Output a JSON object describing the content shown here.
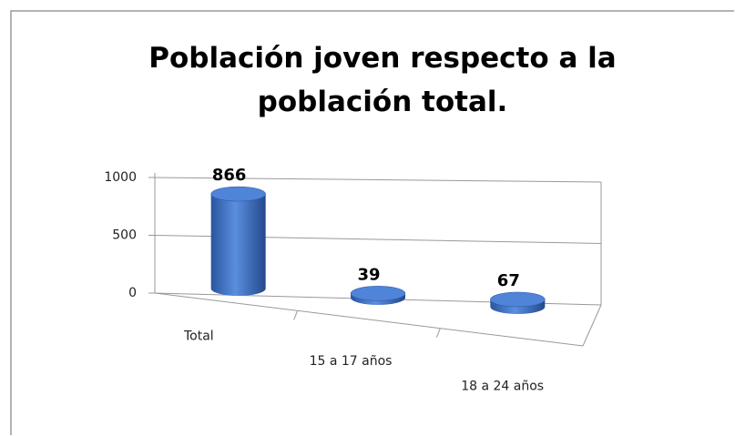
{
  "chart_data": {
    "type": "bar",
    "title": "Población joven respecto a la población total.",
    "categories": [
      "Total",
      "15 a 17 años",
      "18 a 24 años"
    ],
    "values": [
      866,
      39,
      67
    ],
    "color": "#3a6fc4",
    "ylim": [
      0,
      1000
    ],
    "yticks": [
      0,
      500,
      1000
    ],
    "grid": true
  }
}
